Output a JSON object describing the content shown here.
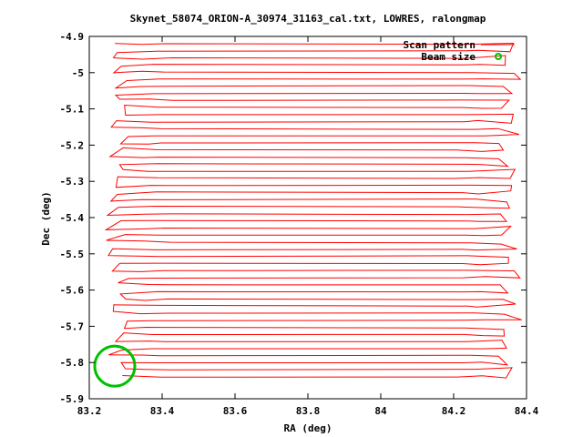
{
  "chart_data": {
    "type": "line",
    "title": "Skynet_58074_ORION-A_30974_31163_cal.txt, LOWRES, ralongmap",
    "xlabel": "RA (deg)",
    "ylabel": "Dec (deg)",
    "xlim": [
      83.2,
      84.4
    ],
    "ylim": [
      -5.9,
      -4.9
    ],
    "x_ticks": [
      83.2,
      83.4,
      83.6,
      83.8,
      84.0,
      84.2,
      84.4
    ],
    "x_tick_labels": [
      "83.2",
      "83.4",
      "83.6",
      "83.8",
      "84",
      "84.2",
      "84.4"
    ],
    "y_ticks": [
      -4.9,
      -5.0,
      -5.1,
      -5.2,
      -5.3,
      -5.4,
      -5.5,
      -5.6,
      -5.7,
      -5.8,
      -5.9
    ],
    "y_tick_labels": [
      "-4.9",
      "-5",
      "-5.1",
      "-5.2",
      "-5.3",
      "-5.4",
      "-5.5",
      "-5.6",
      "-5.7",
      "-5.8",
      "-5.9"
    ],
    "grid": false,
    "legend_position": "top-right",
    "colors": {
      "scan": "#ff0000",
      "beam": "#00c000"
    },
    "scan_pattern": {
      "name": "Scan pattern",
      "type": "raster",
      "ra_start": 83.32,
      "ra_end": 84.31,
      "dec_start": -4.92,
      "dec_end": -5.84,
      "row_spacing_deg": 0.0195,
      "row_count": 48
    },
    "beam": {
      "name": "Beam size",
      "center": [
        83.27,
        -5.81
      ],
      "radius_deg": 0.055
    }
  }
}
